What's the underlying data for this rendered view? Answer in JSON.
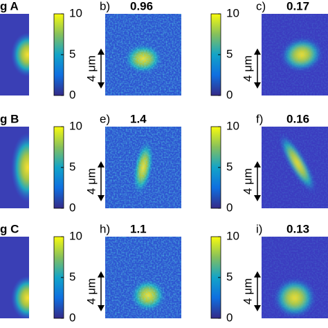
{
  "rows": [
    {
      "left": "g A",
      "mid": {
        "letter": "b)",
        "value": "0.96"
      },
      "right": {
        "letter": "c)",
        "value": "0.17"
      }
    },
    {
      "left": "g B",
      "mid": {
        "letter": "e)",
        "value": "1.4"
      },
      "right": {
        "letter": "f)",
        "value": "0.16"
      }
    },
    {
      "left": "g C",
      "mid": {
        "letter": "h)",
        "value": "1.1"
      },
      "right": {
        "letter": "i)",
        "value": "0.13"
      }
    }
  ],
  "colorbar_ticks": [
    0,
    5,
    10
  ],
  "scale_label": "4 μm"
}
